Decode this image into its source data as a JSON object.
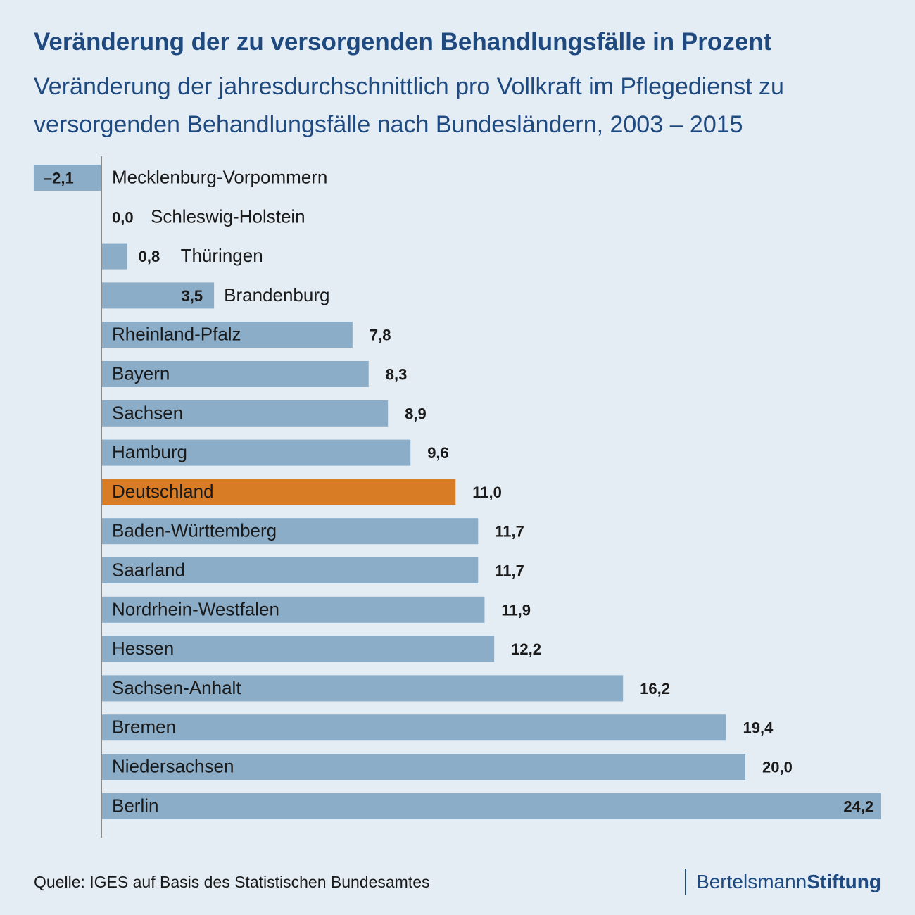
{
  "header": {
    "title": "Veränderung der zu versorgenden Behandlungsfälle in Prozent",
    "subtitle": "Veränderung der jahresdurchschnittlich pro Vollkraft  im Pflegedienst zu versorgenden Behandlungsfälle nach Bundesländern, 2003 – 2015"
  },
  "footer": {
    "source": "Quelle: IGES auf Basis des Statistischen Bundesamtes",
    "logo_regular": "Bertelsmann",
    "logo_bold": "Stiftung"
  },
  "colors": {
    "bar": "#8badc8",
    "highlight": "#d97c26",
    "text": "#1a1a1a",
    "axis": "#8a8a8a"
  },
  "chart_data": {
    "type": "bar",
    "orientation": "horizontal",
    "title": "Veränderung der zu versorgenden Behandlungsfälle in Prozent",
    "categories": [
      "Mecklenburg-Vorpommern",
      "Schleswig-Holstein",
      "Thüringen",
      "Brandenburg",
      "Rheinland-Pfalz",
      "Bayern",
      "Sachsen",
      "Hamburg",
      "Deutschland",
      "Baden-Württemberg",
      "Saarland",
      "Nordrhein-Westfalen",
      "Hessen",
      "Sachsen-Anhalt",
      "Bremen",
      "Niedersachsen",
      "Berlin"
    ],
    "values": [
      -2.1,
      0.0,
      0.8,
      3.5,
      7.8,
      8.3,
      8.9,
      9.6,
      11.0,
      11.7,
      11.7,
      11.9,
      12.2,
      16.2,
      19.4,
      20.0,
      24.2
    ],
    "value_labels": [
      "–2,1",
      "0,0",
      "0,8",
      "3,5",
      "7,8",
      "8,3",
      "8,9",
      "9,6",
      "11,0",
      "11,7",
      "11,7",
      "11,9",
      "12,2",
      "16,2",
      "19,4",
      "20,0",
      "24,2"
    ],
    "highlight_category": "Deutschland",
    "xlim": [
      -2.1,
      24.2
    ],
    "grid": false,
    "legend": "none"
  }
}
